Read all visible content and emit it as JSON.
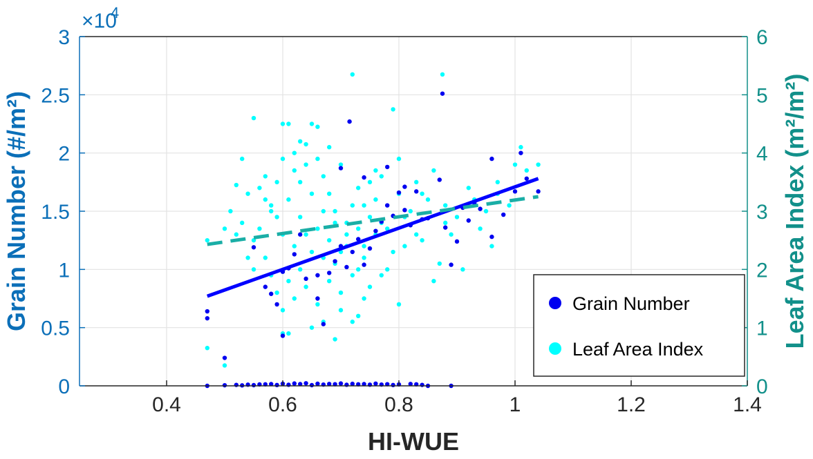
{
  "chart_data": {
    "type": "scatter",
    "xlabel": "HI-WUE",
    "ylabel": "Grain Number (#/m²)",
    "y2label": "Leaf Area Index (m²/m²)",
    "y_exponent_label": "×10",
    "y_exponent_value": "4",
    "xlim": [
      0.25,
      1.4
    ],
    "ylim": [
      0,
      30000
    ],
    "y2lim": [
      0,
      6
    ],
    "x_ticks": [
      0.4,
      0.6,
      0.8,
      1.0,
      1.2,
      1.4
    ],
    "x_tick_labels": [
      "0.4",
      "0.6",
      "0.8",
      "1",
      "1.2",
      "1.4"
    ],
    "y_ticks": [
      0,
      5000,
      10000,
      15000,
      20000,
      25000,
      30000
    ],
    "y_tick_labels": [
      "0",
      "0.5",
      "1",
      "1.5",
      "2",
      "2.5",
      "3"
    ],
    "y2_ticks": [
      0,
      1,
      2,
      3,
      4,
      5,
      6
    ],
    "y2_tick_labels": [
      "0",
      "1",
      "2",
      "3",
      "4",
      "5",
      "6"
    ],
    "grid": true,
    "legend_position": "bottom-right",
    "colors": {
      "left_axis": "#0b6fb8",
      "right_axis": "#12908a",
      "grain": "#0000f0",
      "lai": "#00ffff",
      "grain_fit": "#0000ff",
      "lai_fit": "#1aaea6"
    },
    "series": [
      {
        "name": "Grain Number",
        "axis": "left",
        "marker": "dot",
        "points": [
          [
            0.47,
            6400
          ],
          [
            0.47,
            5800
          ],
          [
            0.5,
            2400
          ],
          [
            0.59,
            7000
          ],
          [
            0.6,
            4300
          ],
          [
            0.63,
            13000
          ],
          [
            0.66,
            7500
          ],
          [
            0.67,
            5300
          ],
          [
            0.7,
            18700
          ],
          [
            0.71,
            10200
          ],
          [
            0.715,
            22700
          ],
          [
            0.74,
            17900
          ],
          [
            0.78,
            18800
          ],
          [
            0.8,
            16600
          ],
          [
            0.81,
            15100
          ],
          [
            0.83,
            16700
          ],
          [
            0.85,
            14400
          ],
          [
            0.87,
            17700
          ],
          [
            0.875,
            25100
          ],
          [
            0.9,
            12400
          ],
          [
            0.91,
            15300
          ],
          [
            0.93,
            15700
          ],
          [
            0.96,
            19500
          ],
          [
            0.96,
            12800
          ],
          [
            0.98,
            14700
          ],
          [
            1.0,
            16700
          ],
          [
            1.01,
            20000
          ],
          [
            1.02,
            17800
          ],
          [
            1.04,
            16700
          ],
          [
            0.57,
            8500
          ],
          [
            0.58,
            7900
          ],
          [
            0.61,
            10100
          ],
          [
            0.64,
            9200
          ],
          [
            0.68,
            9700
          ],
          [
            0.69,
            10700
          ],
          [
            0.72,
            11500
          ],
          [
            0.73,
            12600
          ],
          [
            0.75,
            11800
          ],
          [
            0.76,
            13300
          ],
          [
            0.77,
            14100
          ],
          [
            0.79,
            14600
          ],
          [
            0.82,
            13800
          ],
          [
            0.84,
            14300
          ],
          [
            0.88,
            13600
          ],
          [
            0.89,
            10400
          ],
          [
            0.92,
            14200
          ],
          [
            0.94,
            15200
          ],
          [
            0.66,
            9500
          ],
          [
            0.7,
            12000
          ],
          [
            0.62,
            11300
          ],
          [
            0.6,
            9800
          ],
          [
            0.74,
            10400
          ],
          [
            0.78,
            15500
          ],
          [
            0.81,
            17100
          ],
          [
            0.55,
            11900
          ],
          [
            0.47,
            0
          ],
          [
            0.89,
            0
          ],
          [
            0.85,
            0
          ],
          [
            0.5,
            50
          ],
          [
            0.52,
            80
          ],
          [
            0.54,
            100
          ],
          [
            0.56,
            120
          ],
          [
            0.58,
            150
          ],
          [
            0.6,
            180
          ],
          [
            0.62,
            200
          ],
          [
            0.64,
            220
          ],
          [
            0.66,
            180
          ],
          [
            0.68,
            160
          ],
          [
            0.7,
            200
          ],
          [
            0.72,
            170
          ],
          [
            0.74,
            150
          ],
          [
            0.76,
            190
          ],
          [
            0.78,
            140
          ],
          [
            0.8,
            120
          ],
          [
            0.82,
            160
          ],
          [
            0.84,
            80
          ],
          [
            0.55,
            60
          ],
          [
            0.61,
            90
          ],
          [
            0.67,
            110
          ],
          [
            0.73,
            130
          ],
          [
            0.79,
            70
          ],
          [
            0.63,
            150
          ],
          [
            0.69,
            140
          ],
          [
            0.75,
            100
          ],
          [
            0.57,
            130
          ],
          [
            0.65,
            60
          ],
          [
            0.71,
            90
          ],
          [
            0.77,
            110
          ],
          [
            0.53,
            40
          ],
          [
            0.59,
            70
          ],
          [
            0.83,
            130
          ]
        ]
      },
      {
        "name": "Leaf Area Index",
        "axis": "right",
        "marker": "dot",
        "points": [
          [
            0.47,
            2.5
          ],
          [
            0.47,
            0.65
          ],
          [
            0.5,
            0.35
          ],
          [
            0.72,
            5.35
          ],
          [
            0.875,
            5.35
          ],
          [
            0.79,
            4.75
          ],
          [
            0.55,
            4.6
          ],
          [
            0.6,
            4.5
          ],
          [
            0.61,
            4.5
          ],
          [
            0.65,
            4.5
          ],
          [
            0.66,
            4.45
          ],
          [
            0.64,
            4.15
          ],
          [
            0.7,
            3.8
          ],
          [
            0.52,
            3.45
          ],
          [
            0.53,
            3.9
          ],
          [
            0.54,
            3.3
          ],
          [
            0.56,
            3.4
          ],
          [
            0.57,
            3.2
          ],
          [
            0.58,
            3.1
          ],
          [
            0.59,
            2.9
          ],
          [
            0.62,
            3.7
          ],
          [
            0.63,
            3.5
          ],
          [
            0.67,
            3.6
          ],
          [
            0.68,
            3.3
          ],
          [
            0.69,
            3.0
          ],
          [
            0.71,
            2.8
          ],
          [
            0.73,
            3.4
          ],
          [
            0.74,
            3.1
          ],
          [
            0.75,
            2.9
          ],
          [
            0.76,
            3.2
          ],
          [
            0.77,
            3.6
          ],
          [
            0.78,
            2.7
          ],
          [
            0.8,
            3.3
          ],
          [
            0.81,
            2.4
          ],
          [
            0.82,
            3.0
          ],
          [
            0.84,
            2.5
          ],
          [
            0.86,
            1.8
          ],
          [
            0.88,
            3.1
          ],
          [
            0.9,
            2.9
          ],
          [
            0.92,
            3.4
          ],
          [
            0.95,
            3.0
          ],
          [
            0.96,
            2.4
          ],
          [
            0.97,
            3.5
          ],
          [
            1.0,
            3.8
          ],
          [
            1.01,
            4.1
          ],
          [
            1.02,
            3.7
          ],
          [
            1.04,
            3.8
          ],
          [
            0.53,
            2.8
          ],
          [
            0.55,
            2.5
          ],
          [
            0.57,
            2.2
          ],
          [
            0.58,
            1.9
          ],
          [
            0.59,
            1.6
          ],
          [
            0.6,
            1.3
          ],
          [
            0.61,
            0.9
          ],
          [
            0.62,
            1.5
          ],
          [
            0.63,
            2.0
          ],
          [
            0.64,
            1.7
          ],
          [
            0.65,
            2.3
          ],
          [
            0.66,
            1.4
          ],
          [
            0.67,
            1.1
          ],
          [
            0.68,
            1.8
          ],
          [
            0.69,
            2.1
          ],
          [
            0.7,
            1.6
          ],
          [
            0.71,
            2.4
          ],
          [
            0.72,
            1.9
          ],
          [
            0.73,
            1.2
          ],
          [
            0.74,
            2.2
          ],
          [
            0.75,
            1.7
          ],
          [
            0.76,
            2.6
          ],
          [
            0.78,
            2.0
          ],
          [
            0.8,
            1.4
          ],
          [
            0.79,
            2.3
          ],
          [
            0.54,
            2.2
          ],
          [
            0.56,
            2.7
          ],
          [
            0.58,
            3.0
          ],
          [
            0.6,
            2.6
          ],
          [
            0.61,
            3.2
          ],
          [
            0.62,
            2.4
          ],
          [
            0.63,
            2.9
          ],
          [
            0.64,
            2.6
          ],
          [
            0.65,
            3.3
          ],
          [
            0.66,
            2.7
          ],
          [
            0.67,
            3.0
          ],
          [
            0.68,
            2.5
          ],
          [
            0.69,
            2.8
          ],
          [
            0.7,
            2.3
          ],
          [
            0.71,
            2.6
          ],
          [
            0.72,
            3.1
          ],
          [
            0.73,
            2.7
          ],
          [
            0.74,
            2.4
          ],
          [
            0.75,
            3.5
          ],
          [
            0.77,
            2.8
          ],
          [
            0.83,
            2.6
          ],
          [
            0.85,
            3.2
          ],
          [
            0.87,
            2.1
          ],
          [
            0.89,
            2.6
          ],
          [
            0.91,
            2.0
          ],
          [
            0.93,
            3.2
          ],
          [
            0.99,
            3.1
          ],
          [
            0.52,
            2.6
          ],
          [
            0.51,
            3.0
          ],
          [
            0.5,
            2.7
          ],
          [
            0.59,
            3.5
          ],
          [
            0.6,
            3.9
          ],
          [
            0.62,
            4.0
          ],
          [
            0.64,
            3.8
          ],
          [
            0.66,
            3.9
          ],
          [
            0.68,
            4.1
          ],
          [
            0.76,
            3.7
          ],
          [
            0.8,
            3.9
          ],
          [
            0.83,
            3.5
          ],
          [
            0.86,
            3.7
          ],
          [
            0.57,
            3.6
          ],
          [
            0.63,
            4.2
          ],
          [
            0.65,
            1.0
          ],
          [
            0.6,
            0.9
          ],
          [
            0.69,
            0.8
          ],
          [
            0.7,
            1.3
          ],
          [
            0.72,
            1.1
          ],
          [
            0.74,
            1.5
          ],
          [
            0.55,
            2.0
          ],
          [
            0.61,
            1.8
          ],
          [
            0.67,
            2.2
          ],
          [
            0.73,
            2.0
          ],
          [
            0.77,
            1.9
          ],
          [
            0.81,
            2.9
          ],
          [
            0.84,
            3.3
          ],
          [
            0.88,
            2.8
          ],
          [
            0.94,
            2.7
          ],
          [
            0.97,
            3.3
          ]
        ]
      }
    ],
    "fits": [
      {
        "series": "Grain Number",
        "axis": "left",
        "style": "solid",
        "x": [
          0.47,
          1.04
        ],
        "y": [
          7700,
          17800
        ]
      },
      {
        "series": "Leaf Area Index",
        "axis": "right",
        "style": "dashed",
        "x": [
          0.47,
          1.04
        ],
        "y": [
          2.43,
          3.25
        ]
      }
    ]
  }
}
